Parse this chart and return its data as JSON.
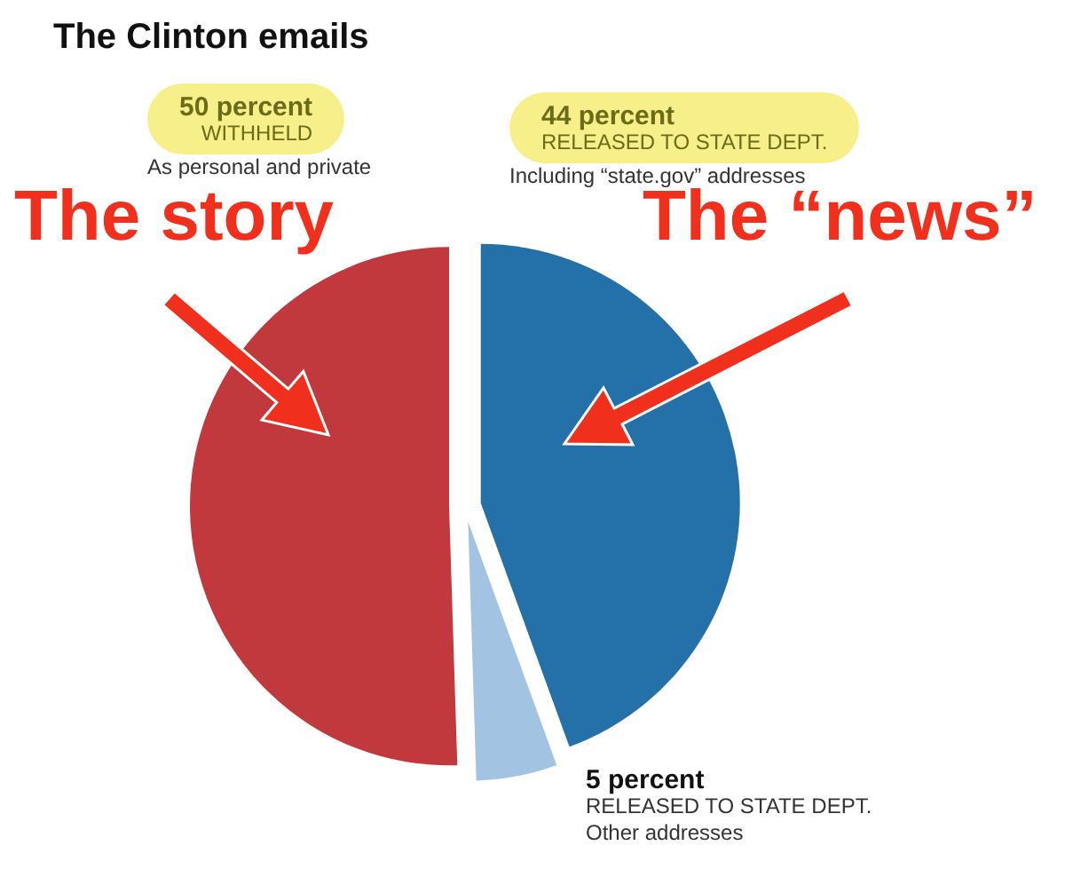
{
  "chart_data": {
    "type": "pie",
    "title": "The Clinton emails",
    "categories": [
      "RELEASED TO STATE DEPT.",
      "RELEASED TO STATE DEPT.",
      "WITHHELD"
    ],
    "values": [
      44,
      5,
      50
    ],
    "colors": [
      "#2470a8",
      "#a3c3e3",
      "#c1393d"
    ],
    "value_labels": [
      "44 percent",
      "5 percent",
      "50 percent"
    ],
    "annotations": [
      "Including “state.gov” addresses",
      "Other addresses",
      "As personal and private",
      "The story",
      "The “news”"
    ],
    "legend": false
  }
}
